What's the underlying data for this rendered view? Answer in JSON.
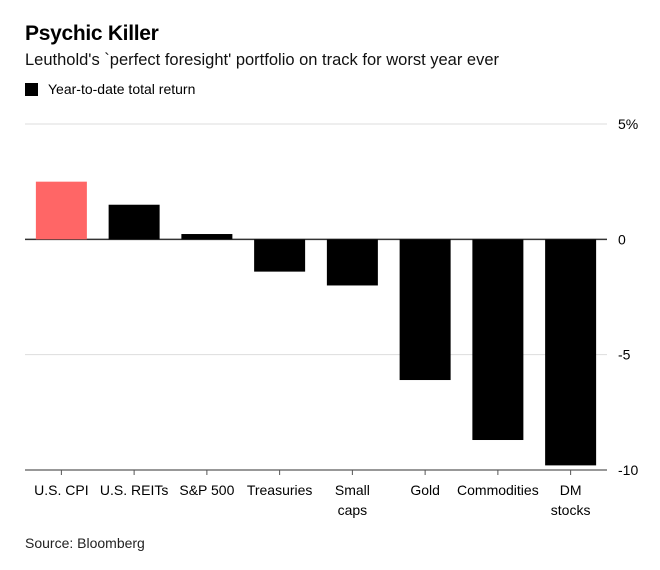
{
  "header": {
    "title": "Psychic Killer",
    "subtitle": "Leuthold's `perfect foresight' portfolio on track for worst year ever"
  },
  "legend": {
    "label": "Year-to-date total return",
    "color": "#000000"
  },
  "source": "Source: Bloomberg",
  "chart_data": {
    "type": "bar",
    "title": "Psychic Killer",
    "subtitle": "Leuthold's `perfect foresight' portfolio on track for worst year ever",
    "categories": [
      [
        "U.S. CPI"
      ],
      [
        "U.S. REITs"
      ],
      [
        "S&P 500"
      ],
      [
        "Treasuries"
      ],
      [
        "Small",
        "caps"
      ],
      [
        "Gold"
      ],
      [
        "Commodities"
      ],
      [
        "DM",
        "stocks"
      ]
    ],
    "series": [
      {
        "name": "Year-to-date total return",
        "values": [
          2.5,
          1.5,
          0.23,
          -1.4,
          -2.0,
          -6.1,
          -8.7,
          -9.8
        ]
      }
    ],
    "bar_colors": [
      "#ff6666",
      "#000000",
      "#000000",
      "#000000",
      "#000000",
      "#000000",
      "#000000",
      "#000000"
    ],
    "xlabel": "",
    "ylabel": "",
    "ylim": [
      -10,
      5
    ],
    "yticks": [
      5,
      0,
      -5,
      -10
    ],
    "ytick_labels": [
      "5%",
      "0",
      "-5",
      "-10"
    ],
    "y_axis_position": "right",
    "grid": true,
    "legend_position": "top-left"
  }
}
